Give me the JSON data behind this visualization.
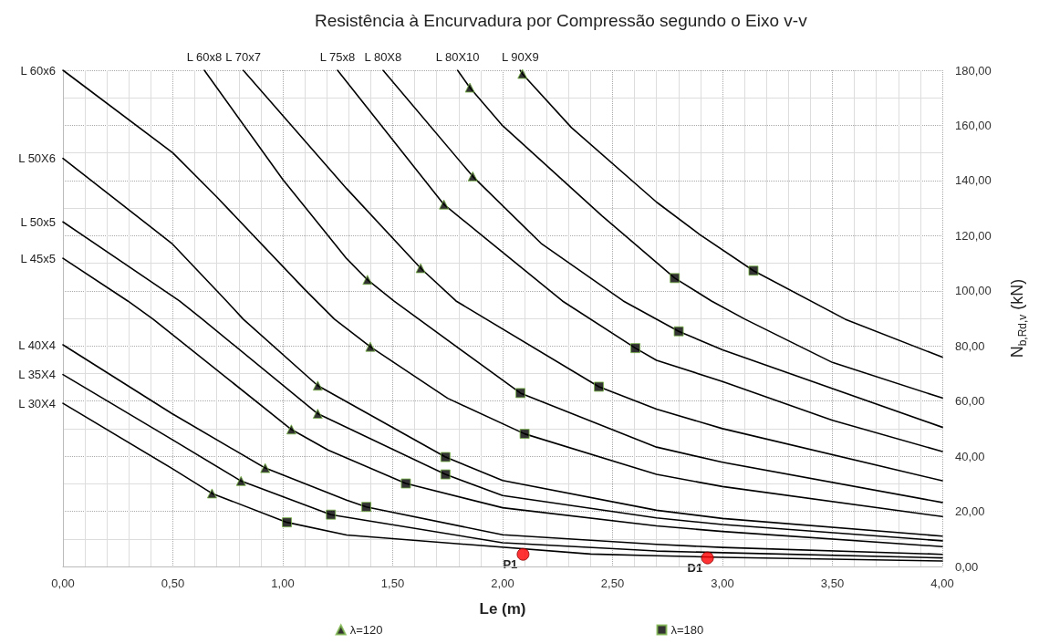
{
  "chart_data": {
    "type": "line",
    "title": "Resistência à Encurvadura por Compressão segundo o Eixo v-v",
    "xlabel": "Le (m)",
    "ylabel": "N$_{b,Rd,v}$ (kN)",
    "xlim": [
      0,
      4
    ],
    "xticks": [
      {
        "value": 0,
        "label": "0,00"
      },
      {
        "value": 0.5,
        "label": "0,50"
      },
      {
        "value": 1,
        "label": "1,00"
      },
      {
        "value": 1.5,
        "label": "1,50"
      },
      {
        "value": 2,
        "label": "2,00"
      },
      {
        "value": 2.5,
        "label": "2,50"
      },
      {
        "value": 3,
        "label": "3,00"
      },
      {
        "value": 3.5,
        "label": "3,50"
      },
      {
        "value": 4,
        "label": "4,00"
      }
    ],
    "ylim": [
      0,
      180
    ],
    "yticks": [
      {
        "value": 0,
        "label": "0,00"
      },
      {
        "value": 20,
        "label": "20,00"
      },
      {
        "value": 40,
        "label": "40,00"
      },
      {
        "value": 60,
        "label": "60,00"
      },
      {
        "value": 80,
        "label": "80,00"
      },
      {
        "value": 100,
        "label": "100,00"
      },
      {
        "value": 120,
        "label": "120,00"
      },
      {
        "value": 140,
        "label": "140,00"
      },
      {
        "value": 160,
        "label": "160,00"
      },
      {
        "value": 180,
        "label": "180,00"
      }
    ],
    "grid": true,
    "legend": "bottom",
    "marker": "none",
    "line_style": "solid",
    "series": [
      {
        "name": "L 60x6",
        "color": "#000000",
        "x": [
          0,
          0.5,
          0.7,
          1.097,
          1.235,
          1.398,
          1.75,
          2.1,
          2.7,
          3.0,
          4.0
        ],
        "values": [
          180,
          150,
          134,
          100.7,
          89.7,
          79.7,
          61,
          48.1,
          33.4,
          29.0,
          18.1
        ]
      },
      {
        "name": "L 50X6",
        "color": "#000000",
        "x": [
          0,
          0.495,
          0.744,
          0.82,
          1.159,
          1.74,
          2.0,
          2.7,
          3.0,
          4.0
        ],
        "values": [
          148,
          117.2,
          96.3,
          89.7,
          65.6,
          39.7,
          31.2,
          20.4,
          17.4,
          11.0
        ]
      },
      {
        "name": "L 50x5",
        "color": "#000000",
        "x": [
          0,
          0.53,
          0.634,
          1.159,
          1.74,
          2.0,
          2.7,
          3.0,
          4.0
        ],
        "values": [
          125,
          96.3,
          89.7,
          55.4,
          33.4,
          25.7,
          17.6,
          15.2,
          9.3
        ]
      },
      {
        "name": "L 45x5",
        "color": "#000000",
        "x": [
          0,
          0.295,
          0.41,
          1.039,
          1.207,
          1.56,
          2.0,
          2.7,
          3.0,
          4.0
        ],
        "values": [
          111.8,
          96.3,
          89.7,
          49.7,
          42.2,
          30.1,
          21.3,
          14.7,
          12.7,
          7.2
        ]
      },
      {
        "name": "L 40X4",
        "color": "#000000",
        "x": [
          0,
          0.495,
          0.92,
          1.29,
          1.38,
          2.0,
          2.7,
          3.0,
          4.0
        ],
        "values": [
          80.4,
          55.5,
          35.7,
          24.1,
          21.6,
          11.5,
          8.0,
          6.9,
          4.4
        ]
      },
      {
        "name": "L 35X4",
        "color": "#000000",
        "x": [
          0,
          0.495,
          0.81,
          1.219,
          2.0,
          2.7,
          3.0,
          4.0
        ],
        "values": [
          69.6,
          46.1,
          31.0,
          18.8,
          8.6,
          5.6,
          5.0,
          3.1
        ]
      },
      {
        "name": "L 30X4",
        "color": "#000000",
        "x": [
          0,
          0.495,
          0.678,
          1.019,
          1.29,
          2.4,
          2.7,
          3.0,
          4.0
        ],
        "values": [
          59.2,
          35.6,
          26.5,
          16.0,
          11.4,
          4.5,
          3.9,
          3.3,
          2.0
        ]
      },
      {
        "name": "L 60x8",
        "color": "#000000",
        "x": [
          0.643,
          1.0,
          1.29,
          1.385,
          1.505,
          2.081,
          2.7,
          3.0,
          4.0
        ],
        "values": [
          180,
          140.4,
          111.7,
          104.0,
          96.3,
          62.9,
          43.3,
          37.8,
          23.2
        ]
      },
      {
        "name": "L 70x7",
        "color": "#000000",
        "x": [
          0.82,
          1.29,
          1.627,
          1.788,
          2.438,
          2.7,
          3.0,
          4.0
        ],
        "values": [
          180,
          137.1,
          108.2,
          96.3,
          65.2,
          57.1,
          50.0,
          31.1
        ]
      },
      {
        "name": "L 75x8",
        "color": "#000000",
        "x": [
          1.249,
          1.733,
          2.272,
          2.604,
          2.7,
          3.0,
          3.5,
          4.0
        ],
        "values": [
          180,
          131.3,
          96.3,
          79.2,
          74.8,
          67.1,
          53,
          41.7
        ]
      },
      {
        "name": "L 80X8",
        "color": "#000000",
        "x": [
          1.456,
          1.864,
          2.175,
          2.549,
          2.801,
          3.0,
          4.0
        ],
        "values": [
          180,
          141.5,
          117.2,
          96.3,
          85.3,
          78.6,
          50.5
        ]
      },
      {
        "name": "L 80X10",
        "color": "#000000",
        "x": [
          1.795,
          1.851,
          1.996,
          2.452,
          2.783,
          2.95,
          3.102,
          3.5,
          4.0
        ],
        "values": [
          180,
          173.7,
          160.2,
          127.2,
          104.6,
          96.3,
          89.7,
          74,
          61.1
        ]
      },
      {
        "name": "L 90X9",
        "color": "#000000",
        "x": [
          2.08,
          2.09,
          2.313,
          2.701,
          2.895,
          3.141,
          3.558,
          4.0
        ],
        "values": [
          180,
          178.7,
          159.2,
          132.1,
          120.5,
          107.3,
          89.7,
          75.9
        ]
      },
      {
        "name": "λ=120",
        "type": "scatter",
        "marker": "triangle",
        "color": "#000000",
        "x": [
          2.09,
          1.851,
          1.864,
          1.733,
          1.627,
          1.385,
          1.398,
          1.159,
          1.159,
          1.039,
          0.92,
          0.81,
          0.678
        ],
        "values": [
          178.7,
          173.7,
          141.5,
          131.3,
          108.2,
          104.0,
          79.7,
          65.6,
          55.4,
          49.7,
          35.7,
          31.0,
          26.5
        ]
      },
      {
        "name": "λ=180",
        "type": "scatter",
        "marker": "square",
        "color": "#000000",
        "x": [
          3.141,
          2.783,
          2.801,
          2.604,
          2.438,
          2.081,
          2.1,
          1.74,
          1.74,
          1.56,
          1.38,
          1.219,
          1.019
        ],
        "values": [
          107.3,
          104.6,
          85.3,
          79.2,
          65.2,
          62.9,
          48.1,
          39.7,
          33.4,
          30.1,
          21.6,
          18.8,
          16.0
        ]
      },
      {
        "type": "scatter",
        "marker": "circle",
        "color": "#ff0000",
        "x": [
          2.093,
          2.932
        ],
        "values": [
          4.4,
          3.1
        ]
      }
    ],
    "annotations": [
      {
        "text": "P1",
        "x": 2.093,
        "y": 4.4
      },
      {
        "text": "D1",
        "x": 2.932,
        "y": 3.1
      }
    ]
  }
}
